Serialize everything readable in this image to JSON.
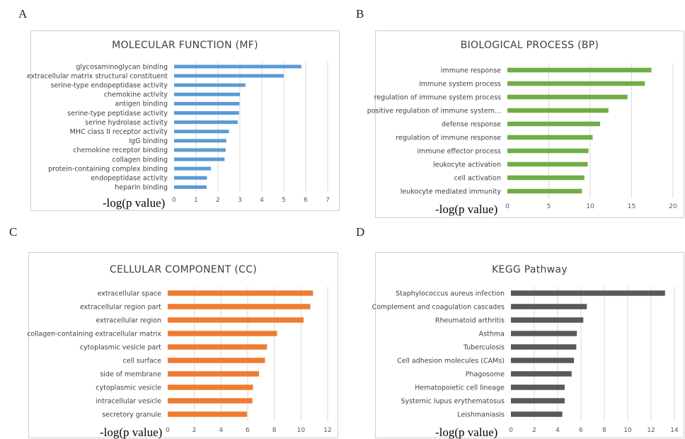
{
  "chart_data": [
    {
      "panel": "A",
      "type": "bar",
      "orientation": "horizontal",
      "title": "MOLECULAR FUNCTION (MF)",
      "xlabel": "-log(p value)",
      "color": "#5b9bd5",
      "xlim": [
        0,
        7
      ],
      "ticks": [
        0,
        1,
        2,
        3,
        4,
        5,
        6,
        7
      ],
      "grid": true,
      "categories": [
        "glycosaminoglycan binding",
        "extracellular matrix structural constituent",
        "serine-type endopeptidase activity",
        "chemokine activity",
        "antigen binding",
        "serine-type peptidase activity",
        "serine hydrolase activity",
        "MHC class II receptor activity",
        "IgG binding",
        "chemokine receptor binding",
        "collagen binding",
        "protein-containing complex binding",
        "endopeptidase activity",
        "heparin binding"
      ],
      "values": [
        5.8,
        5.0,
        3.25,
        3.0,
        2.98,
        2.96,
        2.9,
        2.5,
        2.38,
        2.35,
        2.3,
        1.68,
        1.5,
        1.48
      ]
    },
    {
      "panel": "B",
      "type": "bar",
      "orientation": "horizontal",
      "title": "BIOLOGICAL PROCESS (BP)",
      "xlabel": "-log(p value)",
      "color": "#70ad47",
      "xlim": [
        0,
        20
      ],
      "ticks": [
        0,
        5,
        10,
        15,
        20
      ],
      "grid": true,
      "categories": [
        "immune response",
        "immune system process",
        "regulation of immune system process",
        "positive regulation of immune system...",
        "defense response",
        "regulation of immune response",
        "immune effector process",
        "leukocyte activation",
        "cell activation",
        "leukocyte mediated immunity"
      ],
      "values": [
        17.4,
        16.6,
        14.5,
        12.2,
        11.2,
        10.3,
        9.8,
        9.7,
        9.3,
        9.0
      ]
    },
    {
      "panel": "C",
      "type": "bar",
      "orientation": "horizontal",
      "title": "CELLULAR COMPONENT (CC)",
      "xlabel": "-log(p value)",
      "color": "#ed7d31",
      "xlim": [
        0,
        12
      ],
      "ticks": [
        0,
        2,
        4,
        6,
        8,
        10,
        12
      ],
      "grid": true,
      "categories": [
        "extracellular space",
        "extracellular region part",
        "extracellular region",
        "collagen-containing extracellular matrix",
        "cytoplasmic vesicle part",
        "cell surface",
        "side of membrane",
        "cytoplasmic vesicle",
        "intracellular vesicle",
        "secretory granule"
      ],
      "values": [
        10.9,
        10.7,
        10.2,
        8.2,
        7.45,
        7.3,
        6.85,
        6.4,
        6.35,
        5.95
      ]
    },
    {
      "panel": "D",
      "type": "bar",
      "orientation": "horizontal",
      "title": "KEGG Pathway",
      "xlabel": "-log(p value)",
      "color": "#595959",
      "xlim": [
        0,
        14
      ],
      "ticks": [
        0,
        2,
        4,
        6,
        8,
        10,
        12,
        14
      ],
      "grid": true,
      "categories": [
        "Staphylococcus aureus infection",
        "Complement and coagulation cascades",
        "Rheumatoid arthritis",
        "Asthma",
        "Tuberculosis",
        "Cell adhesion molecules (CAMs)",
        "Phagosome",
        "Hematopoietic cell lineage",
        "Systemic lupus erythematosus",
        "Leishmaniasis"
      ],
      "values": [
        13.2,
        6.5,
        6.2,
        5.65,
        5.6,
        5.4,
        5.2,
        4.6,
        4.6,
        4.4
      ]
    }
  ]
}
